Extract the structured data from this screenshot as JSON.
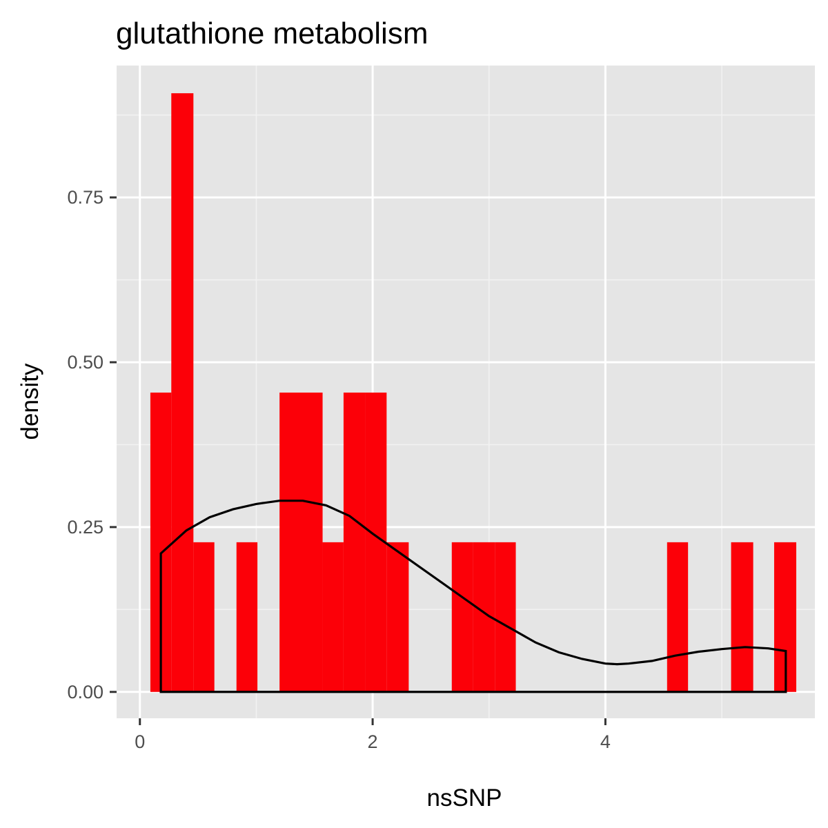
{
  "chart_data": {
    "type": "histogram",
    "title": "glutathione metabolism",
    "xlabel": "nsSNP",
    "ylabel": "density",
    "xlim": [
      -0.2,
      5.8
    ],
    "ylim": [
      -0.04,
      0.95
    ],
    "x_ticks": [
      0,
      2,
      4
    ],
    "x_tick_labels": [
      "0",
      "2",
      "4"
    ],
    "y_ticks": [
      0.0,
      0.25,
      0.5,
      0.75
    ],
    "y_tick_labels": [
      "0.00",
      "0.25",
      "0.50",
      "0.75"
    ],
    "grid": true,
    "legend": "none",
    "bins": [
      {
        "x0": 0.09,
        "x1": 0.27,
        "density": 0.454
      },
      {
        "x0": 0.27,
        "x1": 0.46,
        "density": 0.908
      },
      {
        "x0": 0.46,
        "x1": 0.64,
        "density": 0.227
      },
      {
        "x0": 0.64,
        "x1": 0.83,
        "density": 0.0
      },
      {
        "x0": 0.83,
        "x1": 1.01,
        "density": 0.227
      },
      {
        "x0": 1.01,
        "x1": 1.2,
        "density": 0.0
      },
      {
        "x0": 1.2,
        "x1": 1.38,
        "density": 0.454
      },
      {
        "x0": 1.38,
        "x1": 1.57,
        "density": 0.454
      },
      {
        "x0": 1.57,
        "x1": 1.75,
        "density": 0.227
      },
      {
        "x0": 1.75,
        "x1": 1.94,
        "density": 0.454
      },
      {
        "x0": 1.94,
        "x1": 2.12,
        "density": 0.454
      },
      {
        "x0": 2.12,
        "x1": 2.31,
        "density": 0.227
      },
      {
        "x0": 2.31,
        "x1": 2.49,
        "density": 0.0
      },
      {
        "x0": 2.49,
        "x1": 2.68,
        "density": 0.0
      },
      {
        "x0": 2.68,
        "x1": 2.86,
        "density": 0.227
      },
      {
        "x0": 2.86,
        "x1": 3.05,
        "density": 0.227
      },
      {
        "x0": 3.05,
        "x1": 3.23,
        "density": 0.227
      },
      {
        "x0": 3.23,
        "x1": 3.42,
        "density": 0.0
      },
      {
        "x0": 3.42,
        "x1": 3.6,
        "density": 0.0
      },
      {
        "x0": 3.6,
        "x1": 3.79,
        "density": 0.0
      },
      {
        "x0": 3.79,
        "x1": 3.97,
        "density": 0.0
      },
      {
        "x0": 3.97,
        "x1": 4.16,
        "density": 0.0
      },
      {
        "x0": 4.16,
        "x1": 4.34,
        "density": 0.0
      },
      {
        "x0": 4.34,
        "x1": 4.53,
        "density": 0.0
      },
      {
        "x0": 4.53,
        "x1": 4.71,
        "density": 0.227
      },
      {
        "x0": 4.71,
        "x1": 4.9,
        "density": 0.0
      },
      {
        "x0": 4.9,
        "x1": 5.08,
        "density": 0.0
      },
      {
        "x0": 5.08,
        "x1": 5.27,
        "density": 0.227
      },
      {
        "x0": 5.27,
        "x1": 5.45,
        "density": 0.0
      },
      {
        "x0": 5.45,
        "x1": 5.64,
        "density": 0.227
      }
    ],
    "density_curve": {
      "x": [
        0.18,
        0.4,
        0.6,
        0.8,
        1.0,
        1.2,
        1.4,
        1.6,
        1.8,
        2.0,
        2.2,
        2.4,
        2.6,
        2.8,
        3.0,
        3.2,
        3.4,
        3.6,
        3.8,
        4.0,
        4.1,
        4.2,
        4.4,
        4.6,
        4.8,
        5.0,
        5.2,
        5.4,
        5.55
      ],
      "y": [
        0.21,
        0.245,
        0.265,
        0.277,
        0.285,
        0.29,
        0.29,
        0.283,
        0.267,
        0.24,
        0.215,
        0.19,
        0.165,
        0.14,
        0.115,
        0.095,
        0.075,
        0.06,
        0.05,
        0.043,
        0.042,
        0.043,
        0.047,
        0.055,
        0.061,
        0.065,
        0.068,
        0.066,
        0.062
      ]
    },
    "colors": {
      "bar_fill": "#fc0008",
      "curve_stroke": "#000000",
      "panel_background": "#e5e5e5",
      "grid_major": "#ffffff",
      "grid_minor": "#f2f2f2"
    }
  }
}
